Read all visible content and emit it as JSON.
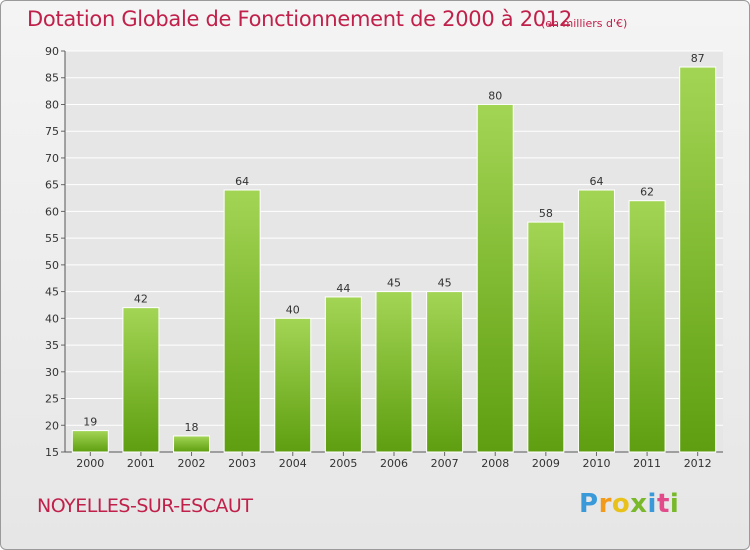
{
  "header": {
    "title": "Dotation Globale de Fonctionnement de 2000 à 2012",
    "subtitle": "(en milliers d'€)"
  },
  "footer": {
    "commune": "NOYELLES-SUR-ESCAUT",
    "logo_text": "Proxiti"
  },
  "colors": {
    "title": "#c0204a",
    "bar_top": "#a3d555",
    "bar_bottom": "#5e9e10",
    "grid": "#ffffff"
  },
  "chart_data": {
    "type": "bar",
    "title": "Dotation Globale de Fonctionnement de 2000 à 2012",
    "subtitle": "(en milliers d'€)",
    "categories": [
      "2000",
      "2001",
      "2002",
      "2003",
      "2004",
      "2005",
      "2006",
      "2007",
      "2008",
      "2009",
      "2010",
      "2011",
      "2012"
    ],
    "values": [
      19,
      42,
      18,
      64,
      40,
      44,
      45,
      45,
      80,
      58,
      64,
      62,
      87
    ],
    "ylim": [
      15,
      90
    ],
    "yticks": [
      15,
      20,
      25,
      30,
      35,
      40,
      45,
      50,
      55,
      60,
      65,
      70,
      75,
      80,
      85,
      90
    ],
    "grid": true,
    "legend": "none",
    "xlabel": "",
    "ylabel": ""
  }
}
